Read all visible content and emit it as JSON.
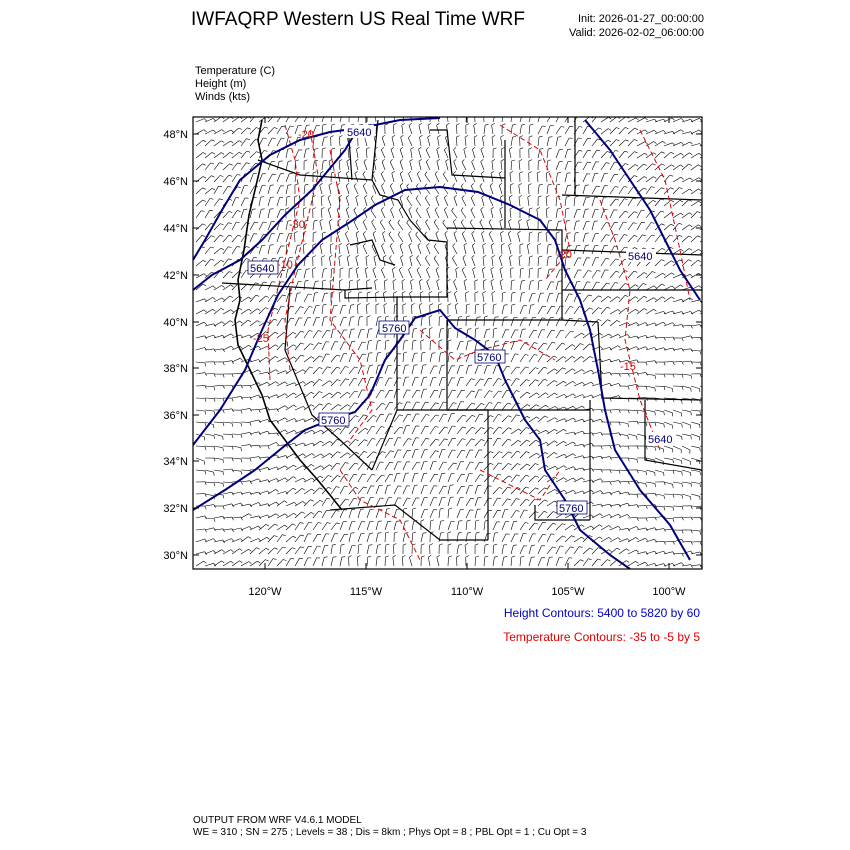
{
  "header": {
    "title": "IWFAQRP Western US Real Time WRF",
    "init": "Init: 2026-01-27_00:00:00",
    "valid": "Valid: 2026-02-02_06:00:00"
  },
  "variables": [
    "Temperature   (C)",
    "Height   (m)",
    "Winds   (kts)"
  ],
  "axes": {
    "lat_labels": [
      "48°N",
      "46°N",
      "44°N",
      "42°N",
      "40°N",
      "38°N",
      "36°N",
      "34°N",
      "32°N",
      "30°N"
    ],
    "lon_labels": [
      "120°W",
      "115°W",
      "110°W",
      "105°W",
      "100°W"
    ]
  },
  "contour_labels": {
    "height": [
      "5640",
      "5640",
      "5640",
      "5760",
      "5760",
      "5760",
      "5760",
      "5640"
    ],
    "temperature": [
      "-20",
      "-30",
      "-10",
      "-25",
      "-20",
      "-15"
    ]
  },
  "legend": {
    "height_contours": "Height Contours: 5400 to 5820 by 60",
    "temperature_contours": "Temperature Contours: -35 to -5 by 5"
  },
  "footer": {
    "line1": "OUTPUT FROM WRF V4.6.1 MODEL",
    "line2": "WE = 310 ; SN = 275 ; Levels = 38 ; Dis = 8km ; Phys Opt = 8 ; PBL Opt = 1 ; Cu Opt = 3"
  },
  "colors": {
    "height_contour": "#00007a",
    "temperature_contour": "#e00000",
    "boundaries": "#000000",
    "wind_barbs": "#000000"
  }
}
